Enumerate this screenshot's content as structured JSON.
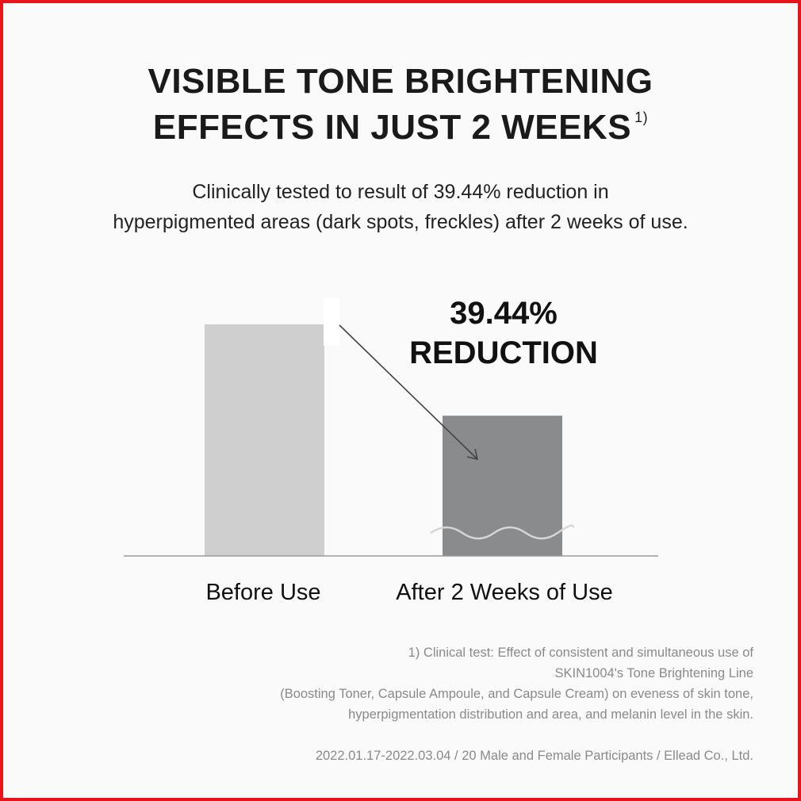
{
  "header": {
    "title_line1": "VISIBLE TONE BRIGHTENING",
    "title_line2": "EFFECTS IN JUST 2 WEEKS",
    "title_note": "1)",
    "subtitle_line1": "Clinically tested to result of 39.44% reduction in",
    "subtitle_line2": "hyperpigmented areas (dark spots, freckles) after 2 weeks of use."
  },
  "chart_data": {
    "type": "bar",
    "categories": [
      "Before Use",
      "After 2 Weeks of Use"
    ],
    "values": [
      100,
      60.56
    ],
    "ylim": [
      0,
      100
    ],
    "grid": false,
    "annotation_line1": "39.44%",
    "annotation_line2": "REDUCTION"
  },
  "footnotes": {
    "lines": [
      "1) Clinical test: Effect of consistent and simultaneous use of",
      "SKIN1004's Tone Brightening Line",
      "(Boosting Toner, Capsule Ampoule, and Capsule Cream) on eveness of skin tone,",
      "hyperpigmentation distribution and area, and melanin level in the skin."
    ],
    "study": "2022.01.17-2022.03.04 / 20 Male and Female Participants / Ellead Co., Ltd."
  },
  "colors": {
    "border": "#e8141b",
    "bar_before": "#cfcfcf",
    "bar_after": "#8a8b8d",
    "axis": "#9a9a9a",
    "arrow": "#444444"
  }
}
